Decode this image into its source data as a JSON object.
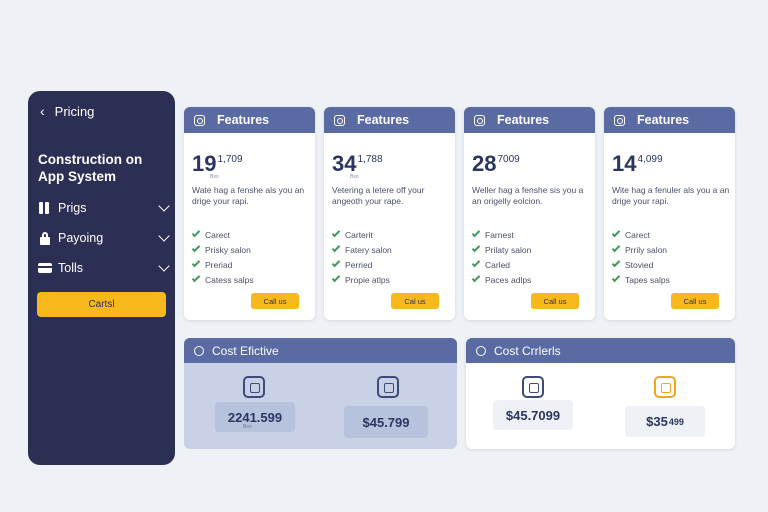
{
  "sidebar": {
    "back_label": "Pricing",
    "title": "Construction on App System",
    "items": [
      {
        "label": "Prigs",
        "icon": "bars-icon"
      },
      {
        "label": "Payoing",
        "icon": "lock-icon"
      },
      {
        "label": "Tolls",
        "icon": "box-icon"
      }
    ],
    "button_label": "Cartsl"
  },
  "cards": [
    {
      "header": "Features",
      "price_big": "19",
      "price_small": "1,709",
      "price_sub": "Bso",
      "description": "Wate hag a fenshe als you an drige your rapi.",
      "features": [
        "Carect",
        "Prisky salon",
        "Preriad",
        "Catess salps"
      ],
      "button": "Call us"
    },
    {
      "header": "Features",
      "price_big": "34",
      "price_small": "1,788",
      "price_sub": "Bso",
      "description": "Vetering a letere off your angeoth your rape.",
      "features": [
        "Carterit",
        "Fatery salon",
        "Perried",
        "Propie atlps"
      ],
      "button": "Cal us"
    },
    {
      "header": "Features",
      "price_big": "28",
      "price_small": "7009",
      "price_sub": "",
      "description": "Weller hag a fenshe sis you a an origelly eolcion.",
      "features": [
        "Farnest",
        "Prilaty salon",
        "Carled",
        "Paces adlps"
      ],
      "button": "Call us"
    },
    {
      "header": "Features",
      "price_big": "14",
      "price_small": "4,099",
      "price_sub": "",
      "description": "Wite hag a fenuler als you a an drige your rapi.",
      "features": [
        "Carect",
        "Prrily salon",
        "Stovied",
        "Tapes salps"
      ],
      "button": "Call us"
    }
  ],
  "panels": [
    {
      "header": "Cost Efictive",
      "boxes": [
        {
          "main": "2241.599",
          "sup": "",
          "sub": "Bso"
        },
        {
          "main": "$45.799",
          "sup": "",
          "sub": ""
        }
      ]
    },
    {
      "header": "Cost Crrlerls",
      "boxes": [
        {
          "main": "$45.7099",
          "sup": "",
          "sub": ""
        },
        {
          "main": "$35",
          "sup": "499",
          "sub": ""
        }
      ]
    }
  ],
  "colors": {
    "sidebar_bg": "#2c2f54",
    "accent_yellow": "#f6b81b",
    "header_blue": "#5a6aa3",
    "check_green": "#3f9a5a"
  }
}
